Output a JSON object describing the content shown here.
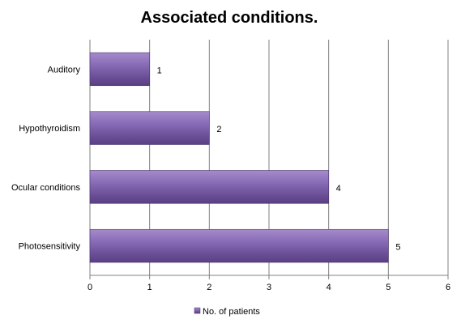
{
  "chart_data": {
    "type": "bar",
    "orientation": "horizontal",
    "title": "Associated conditions.",
    "categories": [
      "Auditory",
      "Hypothyroidism",
      "Ocular conditions",
      "Photosensitivity"
    ],
    "series": [
      {
        "name": "No. of patients",
        "values": [
          1,
          2,
          4,
          5
        ],
        "color": "#7B5FA8"
      }
    ],
    "xlim": [
      0,
      6
    ],
    "x_ticks": [
      "0",
      "1",
      "2",
      "3",
      "4",
      "5",
      "6"
    ],
    "grid": "vertical",
    "legend_position": "bottom"
  }
}
